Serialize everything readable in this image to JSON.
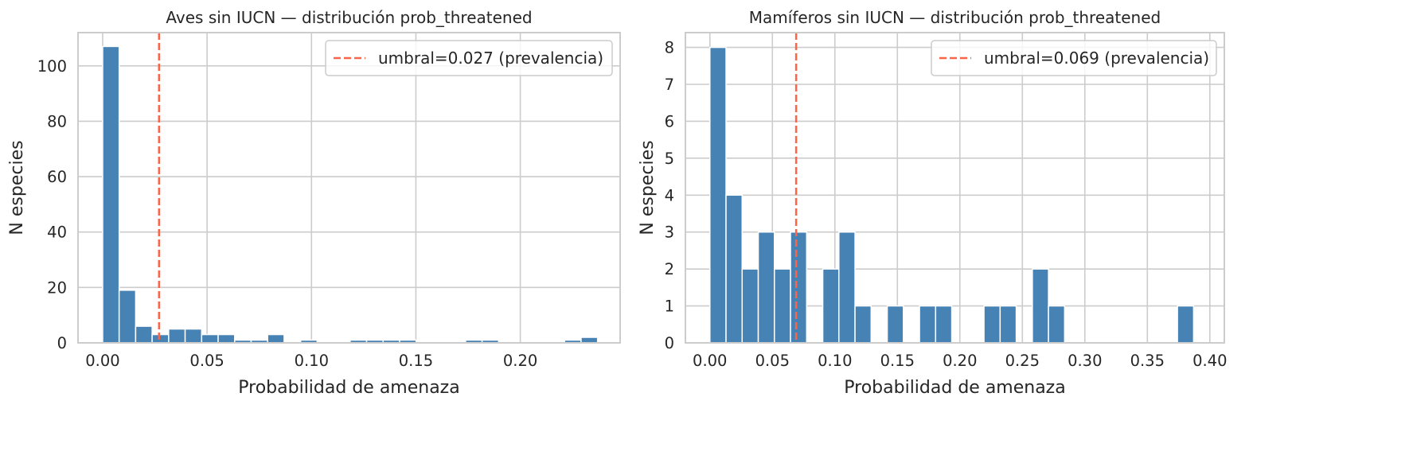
{
  "chart_data": [
    {
      "type": "bar",
      "title": "Aves sin IUCN — distribución prob_threatened",
      "xlabel": "Probabilidad de amenaza",
      "ylabel": "N especies",
      "xlim": [
        -0.0118,
        0.2478
      ],
      "ylim": [
        0,
        112
      ],
      "xticks": [
        0.0,
        0.05,
        0.1,
        0.15,
        0.2
      ],
      "xtick_labels": [
        "0.00",
        "0.05",
        "0.10",
        "0.15",
        "0.20"
      ],
      "yticks": [
        0,
        20,
        40,
        60,
        80,
        100
      ],
      "ytick_labels": [
        "0",
        "20",
        "40",
        "60",
        "80",
        "100"
      ],
      "bin_start": 0.0,
      "bin_width": 0.0079,
      "values": [
        107,
        19,
        6,
        3,
        5,
        5,
        3,
        3,
        1,
        1,
        3,
        0,
        1,
        0,
        0,
        1,
        1,
        1,
        1,
        0,
        0,
        0,
        1,
        1,
        0,
        0,
        0,
        0,
        1,
        2
      ],
      "bar_color": "#4682b4",
      "threshold": {
        "value": 0.027,
        "label": "umbral=0.027 (prevalencia)",
        "color": "#ff6347"
      },
      "grid": true,
      "legend_position": "upper right"
    },
    {
      "type": "bar",
      "title": "Mamíferos sin IUCN — distribución prob_threatened",
      "xlabel": "Probabilidad de amenaza",
      "ylabel": "N especies",
      "xlim": [
        -0.0196,
        0.4116
      ],
      "ylim": [
        0,
        8.4
      ],
      "xticks": [
        0.0,
        0.05,
        0.1,
        0.15,
        0.2,
        0.25,
        0.3,
        0.35,
        0.4
      ],
      "xtick_labels": [
        "0.00",
        "0.05",
        "0.10",
        "0.15",
        "0.20",
        "0.25",
        "0.30",
        "0.35",
        "0.40"
      ],
      "yticks": [
        0,
        1,
        2,
        3,
        4,
        5,
        6,
        7,
        8
      ],
      "ytick_labels": [
        "0",
        "1",
        "2",
        "3",
        "4",
        "5",
        "6",
        "7",
        "8"
      ],
      "bin_start": 0.0,
      "bin_width": 0.0129,
      "values": [
        8,
        4,
        2,
        3,
        2,
        3,
        0,
        2,
        3,
        1,
        0,
        1,
        0,
        1,
        1,
        0,
        0,
        1,
        1,
        0,
        2,
        1,
        0,
        0,
        0,
        0,
        0,
        0,
        0,
        1
      ],
      "bar_color": "#4682b4",
      "threshold": {
        "value": 0.069,
        "label": "umbral=0.069 (prevalencia)",
        "color": "#ff6347"
      },
      "grid": true,
      "legend_position": "upper right"
    }
  ]
}
